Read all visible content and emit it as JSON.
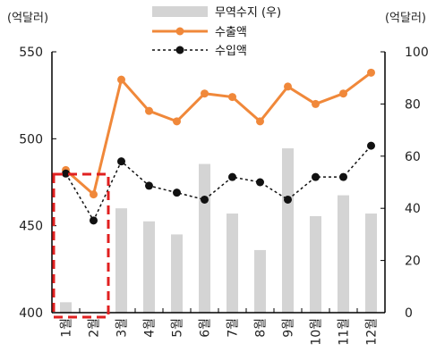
{
  "chart_data": {
    "type": "bar",
    "categories": [
      "1월",
      "2월",
      "3월",
      "4월",
      "5월",
      "6월",
      "7월",
      "8월",
      "9월",
      "10월",
      "11월",
      "12월"
    ],
    "series": [
      {
        "name": "무역수지 (우)",
        "kind": "bar",
        "axis": "right",
        "values": [
          4,
          0,
          40,
          35,
          30,
          57,
          38,
          24,
          63,
          37,
          45,
          38
        ]
      },
      {
        "name": "수출액",
        "kind": "line",
        "axis": "left",
        "values": [
          482,
          468,
          534,
          516,
          510,
          526,
          524,
          510,
          530,
          520,
          526,
          538
        ]
      },
      {
        "name": "수입액",
        "kind": "line-dashed",
        "axis": "left",
        "values": [
          480,
          453,
          487,
          473,
          469,
          465,
          478,
          475,
          465,
          478,
          478,
          496
        ]
      }
    ],
    "left_axis": {
      "label": "(억달러)",
      "ylim": [
        400,
        550
      ],
      "ticks": [
        400,
        450,
        500,
        550
      ]
    },
    "right_axis": {
      "label": "(억달러)",
      "ylim": [
        0,
        100
      ],
      "ticks": [
        0,
        20,
        40,
        60,
        80,
        100
      ]
    },
    "highlight": {
      "categories": [
        "1월",
        "2월"
      ],
      "style": "red-dashed-box"
    },
    "colors": {
      "bar": "#d4d4d4",
      "export_line": "#f0883a",
      "import_line": "#111111",
      "highlight": "#e02020"
    },
    "legend_position": "top-center",
    "grid": false
  }
}
